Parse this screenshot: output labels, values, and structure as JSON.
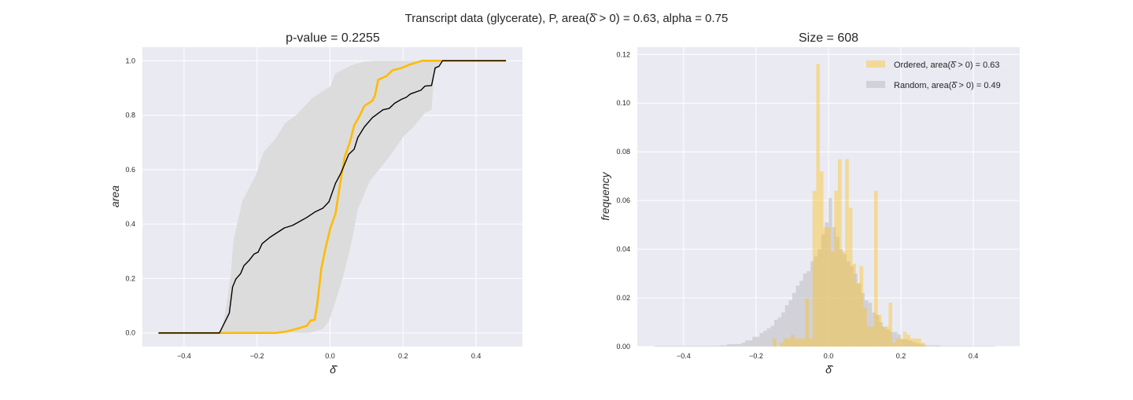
{
  "suptitle": "Transcript data (glycerate), P, area(δ̂ > 0) = 0.63, alpha = 0.75",
  "colors": {
    "axes_bg": "#EAEAF2",
    "grid": "#FFFFFF",
    "observed": "#FFBB00",
    "mean": "#000000",
    "band": "#DCDCDC",
    "ordered": "#FFC21A",
    "random": "#BFBFC4"
  },
  "chart_data": [
    {
      "type": "line",
      "title": "p-value = 0.2255",
      "xlabel": "δ̂",
      "ylabel": "area",
      "xlim": [
        -0.514,
        0.527
      ],
      "ylim": [
        -0.05,
        1.05
      ],
      "xticks": [
        -0.4,
        -0.2,
        0.0,
        0.2,
        0.4
      ],
      "xtick_labels": [
        "−0.4",
        "−0.2",
        "0.0",
        "0.2",
        "0.4"
      ],
      "yticks": [
        0.0,
        0.2,
        0.4,
        0.6,
        0.8,
        1.0
      ],
      "ytick_labels": [
        "0.0",
        "0.2",
        "0.4",
        "0.6",
        "0.8",
        "1.0"
      ],
      "grid": true,
      "band": {
        "upper": [
          [
            -0.47,
            0
          ],
          [
            -0.301,
            0
          ],
          [
            -0.288,
            0.067
          ],
          [
            -0.272,
            0.212
          ],
          [
            -0.265,
            0.337
          ],
          [
            -0.24,
            0.486
          ],
          [
            -0.204,
            0.578
          ],
          [
            -0.182,
            0.665
          ],
          [
            -0.15,
            0.713
          ],
          [
            -0.123,
            0.771
          ],
          [
            -0.093,
            0.8
          ],
          [
            -0.049,
            0.863
          ],
          [
            0.001,
            0.906
          ],
          [
            0.015,
            0.954
          ],
          [
            0.058,
            0.983
          ],
          [
            0.094,
            0.997
          ],
          [
            0.12,
            1.0
          ],
          [
            0.48,
            1.0
          ]
        ],
        "lower": [
          [
            -0.47,
            0
          ],
          [
            -0.056,
            0
          ],
          [
            -0.02,
            0.015
          ],
          [
            -0.003,
            0.044
          ],
          [
            0.015,
            0.116
          ],
          [
            0.037,
            0.212
          ],
          [
            0.058,
            0.328
          ],
          [
            0.076,
            0.453
          ],
          [
            0.109,
            0.559
          ],
          [
            0.159,
            0.641
          ],
          [
            0.202,
            0.723
          ],
          [
            0.231,
            0.761
          ],
          [
            0.26,
            0.809
          ],
          [
            0.278,
            0.819
          ],
          [
            0.285,
            0.954
          ],
          [
            0.303,
            1.0
          ],
          [
            0.48,
            1.0
          ]
        ]
      },
      "series": [
        {
          "name": "mean",
          "points": [
            [
              -0.47,
              0
            ],
            [
              -0.303,
              0
            ],
            [
              -0.276,
              0.073
            ],
            [
              -0.267,
              0.169
            ],
            [
              -0.258,
              0.198
            ],
            [
              -0.245,
              0.218
            ],
            [
              -0.236,
              0.247
            ],
            [
              -0.222,
              0.266
            ],
            [
              -0.208,
              0.29
            ],
            [
              -0.197,
              0.297
            ],
            [
              -0.186,
              0.328
            ],
            [
              -0.164,
              0.352
            ],
            [
              -0.125,
              0.386
            ],
            [
              -0.103,
              0.395
            ],
            [
              -0.064,
              0.424
            ],
            [
              -0.042,
              0.444
            ],
            [
              -0.02,
              0.458
            ],
            [
              -0.003,
              0.482
            ],
            [
              0.015,
              0.55
            ],
            [
              0.03,
              0.588
            ],
            [
              0.051,
              0.656
            ],
            [
              0.066,
              0.675
            ],
            [
              0.076,
              0.718
            ],
            [
              0.094,
              0.757
            ],
            [
              0.116,
              0.791
            ],
            [
              0.145,
              0.82
            ],
            [
              0.162,
              0.825
            ],
            [
              0.177,
              0.844
            ],
            [
              0.195,
              0.858
            ],
            [
              0.209,
              0.866
            ],
            [
              0.22,
              0.878
            ],
            [
              0.249,
              0.892
            ],
            [
              0.26,
              0.907
            ],
            [
              0.278,
              0.909
            ],
            [
              0.288,
              0.974
            ],
            [
              0.298,
              0.979
            ],
            [
              0.308,
              1.0
            ],
            [
              0.482,
              1.0
            ]
          ]
        },
        {
          "name": "observed",
          "points": [
            [
              -0.47,
              0
            ],
            [
              -0.15,
              0
            ],
            [
              -0.121,
              0.005
            ],
            [
              -0.089,
              0.016
            ],
            [
              -0.064,
              0.026
            ],
            [
              -0.053,
              0.046
            ],
            [
              -0.042,
              0.048
            ],
            [
              -0.035,
              0.106
            ],
            [
              -0.024,
              0.236
            ],
            [
              -0.013,
              0.308
            ],
            [
              0.001,
              0.386
            ],
            [
              0.015,
              0.439
            ],
            [
              0.03,
              0.569
            ],
            [
              0.04,
              0.646
            ],
            [
              0.055,
              0.704
            ],
            [
              0.066,
              0.762
            ],
            [
              0.08,
              0.795
            ],
            [
              0.094,
              0.834
            ],
            [
              0.116,
              0.853
            ],
            [
              0.123,
              0.872
            ],
            [
              0.132,
              0.93
            ],
            [
              0.155,
              0.944
            ],
            [
              0.171,
              0.965
            ],
            [
              0.195,
              0.973
            ],
            [
              0.22,
              0.987
            ],
            [
              0.252,
              1.0
            ],
            [
              0.482,
              1.0
            ]
          ]
        }
      ]
    },
    {
      "type": "bar",
      "title": "Size = 608",
      "xlabel": "δ̂",
      "ylabel": "frequency",
      "xlim": [
        -0.528,
        0.528
      ],
      "ylim": [
        0,
        0.123
      ],
      "xticks": [
        -0.4,
        -0.2,
        0.0,
        0.2,
        0.4
      ],
      "xtick_labels": [
        "−0.4",
        "−0.2",
        "0.0",
        "0.2",
        "0.4"
      ],
      "yticks": [
        0.0,
        0.02,
        0.04,
        0.06,
        0.08,
        0.1,
        0.12
      ],
      "ytick_labels": [
        "0.00",
        "0.02",
        "0.04",
        "0.06",
        "0.08",
        "0.10",
        "0.12"
      ],
      "grid": true,
      "legend": "top-right",
      "bin_width": 0.01,
      "series": [
        {
          "name": "Random, area(δ̂ > 0) = 0.49",
          "bin_start": -0.48,
          "values": [
            0.0003,
            0.0003,
            0.0003,
            0.0003,
            0.0003,
            0.0003,
            0.0003,
            0.0003,
            0.0003,
            0.0003,
            0.0003,
            0.0003,
            0.0003,
            0.0003,
            0.0003,
            0.0003,
            0.0003,
            0.0003,
            0.0005,
            0.0005,
            0.001,
            0.001,
            0.001,
            0.001,
            0.0016,
            0.0025,
            0.0025,
            0.004,
            0.004,
            0.0055,
            0.0065,
            0.0075,
            0.0085,
            0.011,
            0.012,
            0.014,
            0.017,
            0.019,
            0.022,
            0.025,
            0.027,
            0.03,
            0.031,
            0.035,
            0.037,
            0.04,
            0.046,
            0.051,
            0.061,
            0.049,
            0.045,
            0.04,
            0.038,
            0.035,
            0.033,
            0.03,
            0.026,
            0.022,
            0.019,
            0.018,
            0.014,
            0.013,
            0.01,
            0.008,
            0.007,
            0.006,
            0.006,
            0.005,
            0.003,
            0.003,
            0.0025,
            0.002,
            0.0015,
            0.001,
            0.0008,
            0.0005,
            0.0005,
            0.0005,
            0.0005,
            0.0002,
            0.0002,
            0.0002,
            0.0002,
            0.0002,
            0.0002,
            0.0002,
            0.0002,
            0.0002,
            0.0002,
            0.0002,
            0.0002,
            0.0002,
            0.0002,
            0.0002
          ]
        },
        {
          "name": "Ordered, area(δ̂ > 0) = 0.63",
          "x": [
            -0.15,
            -0.13,
            -0.12,
            -0.11,
            -0.1,
            -0.09,
            -0.08,
            -0.07,
            -0.06,
            -0.05,
            -0.04,
            -0.03,
            -0.02,
            -0.01,
            0.0,
            0.01,
            0.02,
            0.03,
            0.04,
            0.05,
            0.06,
            0.07,
            0.08,
            0.09,
            0.1,
            0.11,
            0.12,
            0.13,
            0.14,
            0.15,
            0.16,
            0.17,
            0.18,
            0.19,
            0.2,
            0.21,
            0.22,
            0.23,
            0.24,
            0.25,
            0.26
          ],
          "values": [
            0.0033,
            0.0016,
            0.0033,
            0.0033,
            0.0049,
            0.0033,
            0.0033,
            0.0033,
            0.0197,
            0.0033,
            0.064,
            0.116,
            0.072,
            0.049,
            0.049,
            0.039,
            0.064,
            0.077,
            0.039,
            0.077,
            0.057,
            0.034,
            0.026,
            0.033,
            0.016,
            0.0082,
            0.0082,
            0.064,
            0.013,
            0.0082,
            0.0082,
            0.018,
            0.0016,
            0.0033,
            0.0033,
            0.006,
            0.0049,
            0.0033,
            0.0033,
            0.0033,
            0.0016
          ]
        }
      ]
    }
  ]
}
